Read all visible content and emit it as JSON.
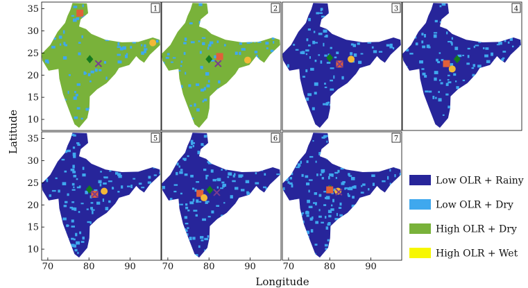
{
  "chart_data": {
    "type": "heatmap",
    "xlabel": "Longitude",
    "ylabel": "Latitude",
    "xlim": [
      68.5,
      97.5
    ],
    "ylim": [
      7.5,
      36.5
    ],
    "xticks": [
      70,
      80,
      90
    ],
    "yticks": [
      10,
      15,
      20,
      25,
      30,
      35
    ],
    "grid": false,
    "legend_position": "bottom-right",
    "legend": [
      {
        "label": "Low OLR + Rainy",
        "color": "#27259a"
      },
      {
        "label": "Low OLR + Dry",
        "color": "#3fa8ee"
      },
      {
        "label": "High OLR + Dry",
        "color": "#79b23a"
      },
      {
        "label": "High OLR + Wet",
        "color": "#f7f700"
      }
    ],
    "marker_colors": {
      "diamond": "#157a1f",
      "square": "#e0603a",
      "circle": "#f2b838",
      "cross": "#7a3c8f"
    },
    "panels": [
      {
        "id": "1",
        "dominant": "High OLR + Dry",
        "markers": {
          "square": [
            77.8,
            34.0
          ],
          "diamond": [
            80.2,
            23.6
          ],
          "cross": [
            82.3,
            22.6
          ],
          "circle": [
            95.5,
            27.3
          ]
        }
      },
      {
        "id": "2",
        "dominant": "High OLR + Dry",
        "markers": {
          "square": [
            82.6,
            24.2
          ],
          "diamond": [
            80.0,
            23.6
          ],
          "cross": [
            82.2,
            22.6
          ],
          "circle": [
            89.4,
            23.4
          ]
        }
      },
      {
        "id": "3",
        "dominant": "Low OLR + Rainy",
        "markers": {
          "diamond": [
            80.0,
            23.9
          ],
          "circle": [
            85.2,
            23.6
          ],
          "square": [
            82.4,
            22.5
          ],
          "cross": [
            82.4,
            22.5
          ]
        }
      },
      {
        "id": "4",
        "dominant": "Low OLR + Rainy",
        "markers": {
          "diamond": [
            81.8,
            23.6
          ],
          "square": [
            79.2,
            22.6
          ],
          "circle": [
            80.6,
            21.4
          ]
        }
      },
      {
        "id": "5",
        "dominant": "Low OLR + Rainy",
        "markers": {
          "diamond": [
            80.1,
            23.5
          ],
          "circle": [
            83.7,
            23.1
          ],
          "square": [
            81.4,
            22.4
          ],
          "cross": [
            81.4,
            22.4
          ]
        }
      },
      {
        "id": "6",
        "dominant": "Low OLR + Rainy",
        "markers": {
          "diamond": [
            80.2,
            23.4
          ],
          "square": [
            77.8,
            22.6
          ],
          "cross": [
            81.9,
            22.8
          ],
          "circle": [
            78.8,
            21.6
          ]
        }
      },
      {
        "id": "7",
        "dominant": "Low OLR + Rainy",
        "markers": {
          "diamond": [
            80.1,
            23.6
          ],
          "square": [
            80.0,
            23.4
          ],
          "circle": [
            82.0,
            23.1
          ],
          "cross": [
            82.2,
            22.9
          ]
        }
      }
    ]
  }
}
